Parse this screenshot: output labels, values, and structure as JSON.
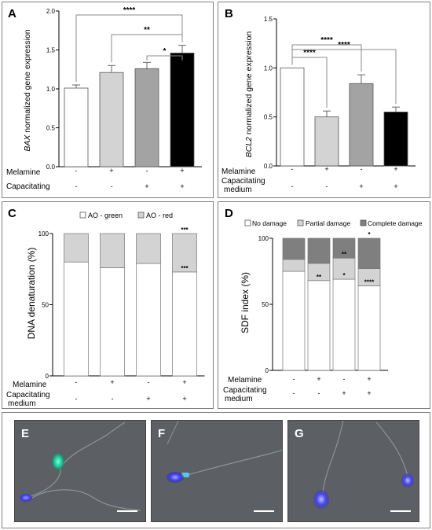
{
  "panels": {
    "a": {
      "letter": "A"
    },
    "b": {
      "letter": "B"
    },
    "c": {
      "letter": "C"
    },
    "d": {
      "letter": "D"
    },
    "e": {
      "letter": "E"
    },
    "f": {
      "letter": "F"
    },
    "g": {
      "letter": "G"
    }
  },
  "conditions": {
    "row1_label": "Melamine",
    "row2_label_line1": "Capacitating",
    "row2_label_line2": "medium",
    "melamine": [
      "-",
      "+",
      "-",
      "+"
    ],
    "capacitating": [
      "-",
      "-",
      "+",
      "+"
    ]
  },
  "chart_data": [
    {
      "panel": "A",
      "type": "bar",
      "ylabel_italic": "BAX",
      "ylabel_rest": " normalized gene expression",
      "ylim": [
        0,
        2.0
      ],
      "yticks": [
        "0.0",
        "0.5",
        "1.0",
        "1.5",
        "2.0"
      ],
      "yticks_values": [
        0,
        0.5,
        1.0,
        1.5,
        2.0
      ],
      "values": [
        1.01,
        1.21,
        1.26,
        1.46
      ],
      "errors": [
        0.04,
        0.09,
        0.08,
        0.1
      ],
      "colors": [
        "#ffffff",
        "#d3d3d3",
        "#a3a3a3",
        "#000000"
      ],
      "significance": [
        {
          "from": 0,
          "to": 3,
          "label": "****"
        },
        {
          "from": 1,
          "to": 3,
          "label": "**"
        },
        {
          "from": 2,
          "to": 3,
          "label": "*"
        }
      ]
    },
    {
      "panel": "B",
      "type": "bar",
      "ylabel_italic": "BCL2",
      "ylabel_rest": " normalized gene expression",
      "ylim": [
        0,
        1.5
      ],
      "yticks": [
        "0.0",
        "0.5",
        "1.0",
        "1.5"
      ],
      "yticks_values": [
        0,
        0.5,
        1.0,
        1.5
      ],
      "values": [
        1.0,
        0.5,
        0.84,
        0.55
      ],
      "errors": [
        0.0,
        0.06,
        0.09,
        0.05
      ],
      "colors": [
        "#ffffff",
        "#d3d3d3",
        "#a3a3a3",
        "#000000"
      ],
      "significance": [
        {
          "from": 0,
          "to": 1,
          "label": "****"
        },
        {
          "from": 0,
          "to": 2,
          "label": "****"
        },
        {
          "from": 0,
          "to": 3,
          "label": "****"
        }
      ]
    },
    {
      "panel": "C",
      "type": "stacked-bar",
      "ylabel": "DNA denaturation (%)",
      "ylim": [
        0,
        100
      ],
      "yticks": [
        "0",
        "50",
        "100"
      ],
      "yticks_values": [
        0,
        50,
        100
      ],
      "legend": [
        {
          "name": "AO - green",
          "color": "#ffffff"
        },
        {
          "name": "AO - red",
          "color": "#d3d3d3"
        }
      ],
      "series": [
        {
          "name": "AO - green",
          "values": [
            80,
            76,
            79,
            73
          ]
        },
        {
          "name": "AO - red",
          "values": [
            20,
            24,
            21,
            27
          ]
        }
      ],
      "annotations": [
        {
          "bar": 3,
          "value": 73,
          "label": "***"
        },
        {
          "bar": 3,
          "value": 100,
          "label": "***"
        }
      ]
    },
    {
      "panel": "D",
      "type": "stacked-bar",
      "ylabel": "SDF index (%)",
      "ylim": [
        0,
        100
      ],
      "yticks": [
        "0",
        "50",
        "100"
      ],
      "yticks_values": [
        0,
        50,
        100
      ],
      "legend": [
        {
          "name": "No damage",
          "color": "#ffffff"
        },
        {
          "name": "Partial damage",
          "color": "#d3d3d3"
        },
        {
          "name": "Complete damage",
          "color": "#7f7f7f"
        }
      ],
      "series": [
        {
          "name": "No damage",
          "values": [
            75,
            68,
            69,
            64
          ]
        },
        {
          "name": "Partial damage",
          "values": [
            9,
            13,
            16,
            13
          ]
        },
        {
          "name": "Complete damage",
          "values": [
            16,
            19,
            15,
            23
          ]
        }
      ],
      "annotations": [
        {
          "bar": 1,
          "value": 68,
          "label": "**"
        },
        {
          "bar": 2,
          "value": 85,
          "label": "**"
        },
        {
          "bar": 2,
          "value": 69,
          "label": "*"
        },
        {
          "bar": 3,
          "value": 100,
          "label": "*"
        },
        {
          "bar": 3,
          "value": 64,
          "label": "****"
        }
      ]
    }
  ]
}
